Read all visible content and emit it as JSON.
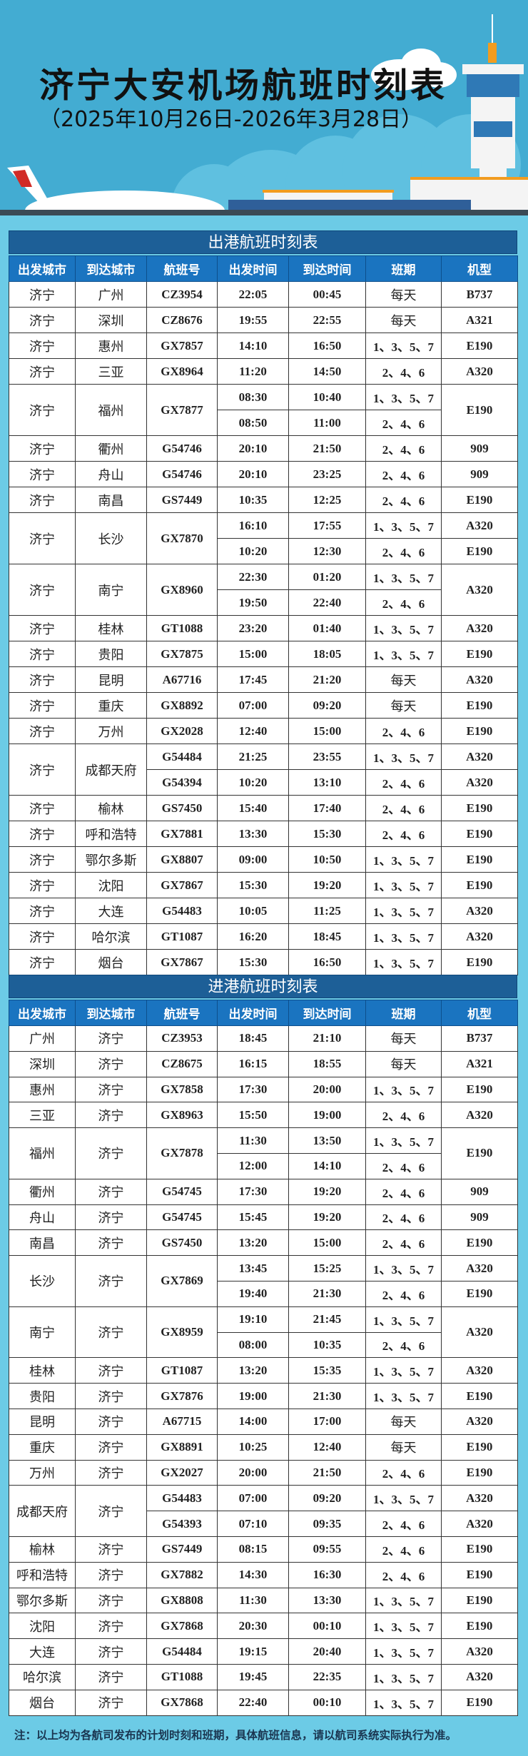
{
  "header": {
    "title": "济宁大安机场航班时刻表",
    "subtitle": "（2025年10月26日-2026年3月28日）"
  },
  "columns": [
    "出发城市",
    "到达城市",
    "航班号",
    "出发时间",
    "到达时间",
    "班期",
    "机型"
  ],
  "colors": {
    "sky": "#43acd2",
    "title_bar": "#1d5f97",
    "header_row": "#1a74c0",
    "frame": "#6ccbe6"
  },
  "outbound": {
    "title": "出港航班时刻表",
    "routes": [
      {
        "from": "济宁",
        "to": "广州",
        "flight": "CZ3954",
        "aircraft": "B737",
        "segments": [
          {
            "dep": "22:05",
            "arr": "00:45",
            "days": "每天"
          }
        ]
      },
      {
        "from": "济宁",
        "to": "深圳",
        "flight": "CZ8676",
        "aircraft": "A321",
        "segments": [
          {
            "dep": "19:55",
            "arr": "22:55",
            "days": "每天"
          }
        ]
      },
      {
        "from": "济宁",
        "to": "惠州",
        "flight": "GX7857",
        "aircraft": "E190",
        "segments": [
          {
            "dep": "14:10",
            "arr": "16:50",
            "days": "1、3、5、7"
          }
        ]
      },
      {
        "from": "济宁",
        "to": "三亚",
        "flight": "GX8964",
        "aircraft": "A320",
        "segments": [
          {
            "dep": "11:20",
            "arr": "14:50",
            "days": "2、4、6"
          }
        ]
      },
      {
        "from": "济宁",
        "to": "福州",
        "flight": "GX7877",
        "aircraft": "E190",
        "segments": [
          {
            "dep": "08:30",
            "arr": "10:40",
            "days": "1、3、5、7"
          },
          {
            "dep": "08:50",
            "arr": "11:00",
            "days": "2、4、6"
          }
        ]
      },
      {
        "from": "济宁",
        "to": "衢州",
        "flight": "G54746",
        "aircraft": "909",
        "segments": [
          {
            "dep": "20:10",
            "arr": "21:50",
            "days": "2、4、6"
          }
        ]
      },
      {
        "from": "济宁",
        "to": "舟山",
        "flight": "G54746",
        "aircraft": "909",
        "segments": [
          {
            "dep": "20:10",
            "arr": "23:25",
            "days": "2、4、6"
          }
        ]
      },
      {
        "from": "济宁",
        "to": "南昌",
        "flight": "GS7449",
        "aircraft": "E190",
        "segments": [
          {
            "dep": "10:35",
            "arr": "12:25",
            "days": "2、4、6"
          }
        ]
      },
      {
        "from": "济宁",
        "to": "长沙",
        "flight": "GX7870",
        "segments": [
          {
            "dep": "16:10",
            "arr": "17:55",
            "days": "1、3、5、7",
            "aircraft": "A320"
          },
          {
            "dep": "10:20",
            "arr": "12:30",
            "days": "2、4、6",
            "aircraft": "E190"
          }
        ]
      },
      {
        "from": "济宁",
        "to": "南宁",
        "flight": "GX8960",
        "aircraft": "A320",
        "segments": [
          {
            "dep": "22:30",
            "arr": "01:20",
            "days": "1、3、5、7"
          },
          {
            "dep": "19:50",
            "arr": "22:40",
            "days": "2、4、6"
          }
        ]
      },
      {
        "from": "济宁",
        "to": "桂林",
        "flight": "GT1088",
        "aircraft": "A320",
        "segments": [
          {
            "dep": "23:20",
            "arr": "01:40",
            "days": "1、3、5、7"
          }
        ]
      },
      {
        "from": "济宁",
        "to": "贵阳",
        "flight": "GX7875",
        "aircraft": "E190",
        "segments": [
          {
            "dep": "15:00",
            "arr": "18:05",
            "days": "1、3、5、7"
          }
        ]
      },
      {
        "from": "济宁",
        "to": "昆明",
        "flight": "A67716",
        "aircraft": "A320",
        "segments": [
          {
            "dep": "17:45",
            "arr": "21:20",
            "days": "每天"
          }
        ]
      },
      {
        "from": "济宁",
        "to": "重庆",
        "flight": "GX8892",
        "aircraft": "E190",
        "segments": [
          {
            "dep": "07:00",
            "arr": "09:20",
            "days": "每天"
          }
        ]
      },
      {
        "from": "济宁",
        "to": "万州",
        "flight": "GX2028",
        "aircraft": "E190",
        "segments": [
          {
            "dep": "12:40",
            "arr": "15:00",
            "days": "2、4、6"
          }
        ]
      },
      {
        "from": "济宁",
        "to": "成都天府",
        "segments": [
          {
            "flight": "G54484",
            "dep": "21:25",
            "arr": "23:55",
            "days": "1、3、5、7",
            "aircraft": "A320"
          },
          {
            "flight": "G54394",
            "dep": "10:20",
            "arr": "13:10",
            "days": "2、4、6",
            "aircraft": "A320"
          }
        ]
      },
      {
        "from": "济宁",
        "to": "榆林",
        "flight": "GS7450",
        "aircraft": "E190",
        "segments": [
          {
            "dep": "15:40",
            "arr": "17:40",
            "days": "2、4、6"
          }
        ]
      },
      {
        "from": "济宁",
        "to": "呼和浩特",
        "flight": "GX7881",
        "aircraft": "E190",
        "segments": [
          {
            "dep": "13:30",
            "arr": "15:30",
            "days": "2、4、6"
          }
        ]
      },
      {
        "from": "济宁",
        "to": "鄂尔多斯",
        "flight": "GX8807",
        "aircraft": "E190",
        "segments": [
          {
            "dep": "09:00",
            "arr": "10:50",
            "days": "1、3、5、7"
          }
        ]
      },
      {
        "from": "济宁",
        "to": "沈阳",
        "flight": "GX7867",
        "aircraft": "E190",
        "segments": [
          {
            "dep": "15:30",
            "arr": "19:20",
            "days": "1、3、5、7"
          }
        ]
      },
      {
        "from": "济宁",
        "to": "大连",
        "flight": "G54483",
        "aircraft": "A320",
        "segments": [
          {
            "dep": "10:05",
            "arr": "11:25",
            "days": "1、3、5、7"
          }
        ]
      },
      {
        "from": "济宁",
        "to": "哈尔滨",
        "flight": "GT1087",
        "aircraft": "A320",
        "segments": [
          {
            "dep": "16:20",
            "arr": "18:45",
            "days": "1、3、5、7"
          }
        ]
      },
      {
        "from": "济宁",
        "to": "烟台",
        "flight": "GX7867",
        "aircraft": "E190",
        "segments": [
          {
            "dep": "15:30",
            "arr": "16:50",
            "days": "1、3、5、7"
          }
        ]
      }
    ]
  },
  "inbound": {
    "title": "进港航班时刻表",
    "routes": [
      {
        "from": "广州",
        "to": "济宁",
        "flight": "CZ3953",
        "aircraft": "B737",
        "segments": [
          {
            "dep": "18:45",
            "arr": "21:10",
            "days": "每天"
          }
        ]
      },
      {
        "from": "深圳",
        "to": "济宁",
        "flight": "CZ8675",
        "aircraft": "A321",
        "segments": [
          {
            "dep": "16:15",
            "arr": "18:55",
            "days": "每天"
          }
        ]
      },
      {
        "from": "惠州",
        "to": "济宁",
        "flight": "GX7858",
        "aircraft": "E190",
        "segments": [
          {
            "dep": "17:30",
            "arr": "20:00",
            "days": "1、3、5、7"
          }
        ]
      },
      {
        "from": "三亚",
        "to": "济宁",
        "flight": "GX8963",
        "aircraft": "A320",
        "segments": [
          {
            "dep": "15:50",
            "arr": "19:00",
            "days": "2、4、6"
          }
        ]
      },
      {
        "from": "福州",
        "to": "济宁",
        "flight": "GX7878",
        "aircraft": "E190",
        "segments": [
          {
            "dep": "11:30",
            "arr": "13:50",
            "days": "1、3、5、7"
          },
          {
            "dep": "12:00",
            "arr": "14:10",
            "days": "2、4、6"
          }
        ]
      },
      {
        "from": "衢州",
        "to": "济宁",
        "flight": "G54745",
        "aircraft": "909",
        "segments": [
          {
            "dep": "17:30",
            "arr": "19:20",
            "days": "2、4、6"
          }
        ]
      },
      {
        "from": "舟山",
        "to": "济宁",
        "flight": "G54745",
        "aircraft": "909",
        "segments": [
          {
            "dep": "15:45",
            "arr": "19:20",
            "days": "2、4、6"
          }
        ]
      },
      {
        "from": "南昌",
        "to": "济宁",
        "flight": "GS7450",
        "aircraft": "E190",
        "segments": [
          {
            "dep": "13:20",
            "arr": "15:00",
            "days": "2、4、6"
          }
        ]
      },
      {
        "from": "长沙",
        "to": "济宁",
        "flight": "GX7869",
        "segments": [
          {
            "dep": "13:45",
            "arr": "15:25",
            "days": "1、3、5、7",
            "aircraft": "A320"
          },
          {
            "dep": "19:40",
            "arr": "21:30",
            "days": "2、4、6",
            "aircraft": "E190"
          }
        ]
      },
      {
        "from": "南宁",
        "to": "济宁",
        "flight": "GX8959",
        "aircraft": "A320",
        "segments": [
          {
            "dep": "19:10",
            "arr": "21:45",
            "days": "1、3、5、7"
          },
          {
            "dep": "08:00",
            "arr": "10:35",
            "days": "2、4、6"
          }
        ]
      },
      {
        "from": "桂林",
        "to": "济宁",
        "flight": "GT1087",
        "aircraft": "A320",
        "segments": [
          {
            "dep": "13:20",
            "arr": "15:35",
            "days": "1、3、5、7"
          }
        ]
      },
      {
        "from": "贵阳",
        "to": "济宁",
        "flight": "GX7876",
        "aircraft": "E190",
        "segments": [
          {
            "dep": "19:00",
            "arr": "21:30",
            "days": "1、3、5、7"
          }
        ]
      },
      {
        "from": "昆明",
        "to": "济宁",
        "flight": "A67715",
        "aircraft": "A320",
        "segments": [
          {
            "dep": "14:00",
            "arr": "17:00",
            "days": "每天"
          }
        ]
      },
      {
        "from": "重庆",
        "to": "济宁",
        "flight": "GX8891",
        "aircraft": "E190",
        "segments": [
          {
            "dep": "10:25",
            "arr": "12:40",
            "days": "每天"
          }
        ]
      },
      {
        "from": "万州",
        "to": "济宁",
        "flight": "GX2027",
        "aircraft": "E190",
        "segments": [
          {
            "dep": "20:00",
            "arr": "21:50",
            "days": "2、4、6"
          }
        ]
      },
      {
        "from": "成都天府",
        "to": "济宁",
        "segments": [
          {
            "flight": "G54483",
            "dep": "07:00",
            "arr": "09:20",
            "days": "1、3、5、7",
            "aircraft": "A320"
          },
          {
            "flight": "G54393",
            "dep": "07:10",
            "arr": "09:35",
            "days": "2、4、6",
            "aircraft": "A320"
          }
        ]
      },
      {
        "from": "榆林",
        "to": "济宁",
        "flight": "GS7449",
        "aircraft": "E190",
        "segments": [
          {
            "dep": "08:15",
            "arr": "09:55",
            "days": "2、4、6"
          }
        ]
      },
      {
        "from": "呼和浩特",
        "to": "济宁",
        "flight": "GX7882",
        "aircraft": "E190",
        "segments": [
          {
            "dep": "14:30",
            "arr": "16:30",
            "days": "2、4、6"
          }
        ]
      },
      {
        "from": "鄂尔多斯",
        "to": "济宁",
        "flight": "GX8808",
        "aircraft": "E190",
        "segments": [
          {
            "dep": "11:30",
            "arr": "13:30",
            "days": "1、3、5、7"
          }
        ]
      },
      {
        "from": "沈阳",
        "to": "济宁",
        "flight": "GX7868",
        "aircraft": "E190",
        "segments": [
          {
            "dep": "20:30",
            "arr": "00:10",
            "days": "1、3、5、7"
          }
        ]
      },
      {
        "from": "大连",
        "to": "济宁",
        "flight": "G54484",
        "aircraft": "A320",
        "segments": [
          {
            "dep": "19:15",
            "arr": "20:40",
            "days": "1、3、5、7"
          }
        ]
      },
      {
        "from": "哈尔滨",
        "to": "济宁",
        "flight": "GT1088",
        "aircraft": "A320",
        "segments": [
          {
            "dep": "19:45",
            "arr": "22:35",
            "days": "1、3、5、7"
          }
        ]
      },
      {
        "from": "烟台",
        "to": "济宁",
        "flight": "GX7868",
        "aircraft": "E190",
        "segments": [
          {
            "dep": "22:40",
            "arr": "00:10",
            "days": "1、3、5、7"
          }
        ]
      }
    ]
  },
  "footer": {
    "note": "注：以上均为各航司发布的计划时刻和班期，具体航班信息，请以航司系统实际执行为准。"
  }
}
